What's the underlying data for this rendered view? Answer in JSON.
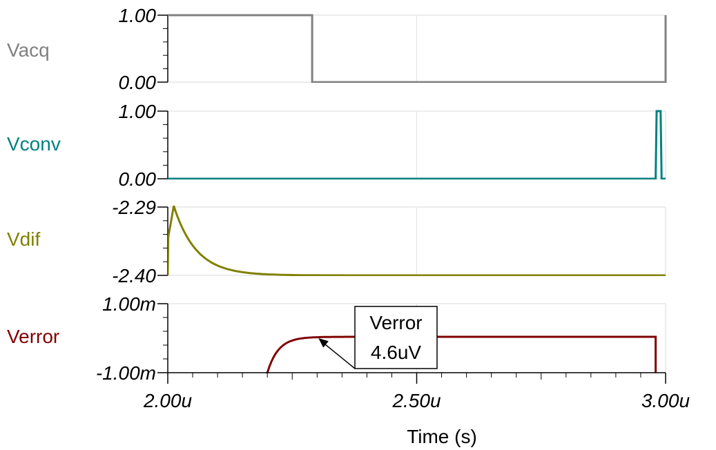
{
  "chart_data": {
    "type": "line",
    "xlabel": "Time (s)",
    "x_ticks": [
      "2.00u",
      "2.50u",
      "3.00u"
    ],
    "x_range": [
      2e-06,
      3e-06
    ],
    "grid": true,
    "series": [
      {
        "name": "Vacq",
        "color": "#808080",
        "y_ticks": [
          "1.00",
          "0.00"
        ],
        "ylim": [
          0,
          1
        ],
        "kind": "step",
        "points": [
          [
            2.0,
            1
          ],
          [
            2.29,
            1
          ],
          [
            2.29,
            0
          ],
          [
            3.0,
            0
          ],
          [
            3.0,
            1
          ]
        ]
      },
      {
        "name": "Vconv",
        "color": "#008080",
        "y_ticks": [
          "1.00",
          "0.00"
        ],
        "ylim": [
          0,
          1
        ],
        "kind": "step",
        "points": [
          [
            2.0,
            0
          ],
          [
            2.98,
            0
          ],
          [
            2.982,
            1
          ],
          [
            2.99,
            1
          ],
          [
            2.992,
            0
          ],
          [
            3.0,
            0
          ]
        ]
      },
      {
        "name": "Vdif",
        "color": "#808000",
        "y_ticks": [
          "-2.29",
          "-2.40"
        ],
        "ylim": [
          -2.4,
          -2.29
        ],
        "kind": "decay",
        "rise_start": 2.0,
        "peak_time": 2.012,
        "peak": -2.288,
        "final": -2.4,
        "tau": 0.045,
        "end": 3.0
      },
      {
        "name": "Verror",
        "color": "#800000",
        "y_ticks": [
          "1.00m",
          "-1.00m"
        ],
        "ylim": [
          -0.001,
          0.001
        ],
        "kind": "rise",
        "start_time": 2.2,
        "start_value": -0.001,
        "final": 4.6e-06,
        "tau": 0.022,
        "end_time": 2.98,
        "drop_to": -0.001
      }
    ],
    "annotation": {
      "series": "Verror",
      "lines": [
        "Verror",
        "4.6uV"
      ],
      "points_to": [
        2.3,
        4.6e-06
      ]
    }
  }
}
